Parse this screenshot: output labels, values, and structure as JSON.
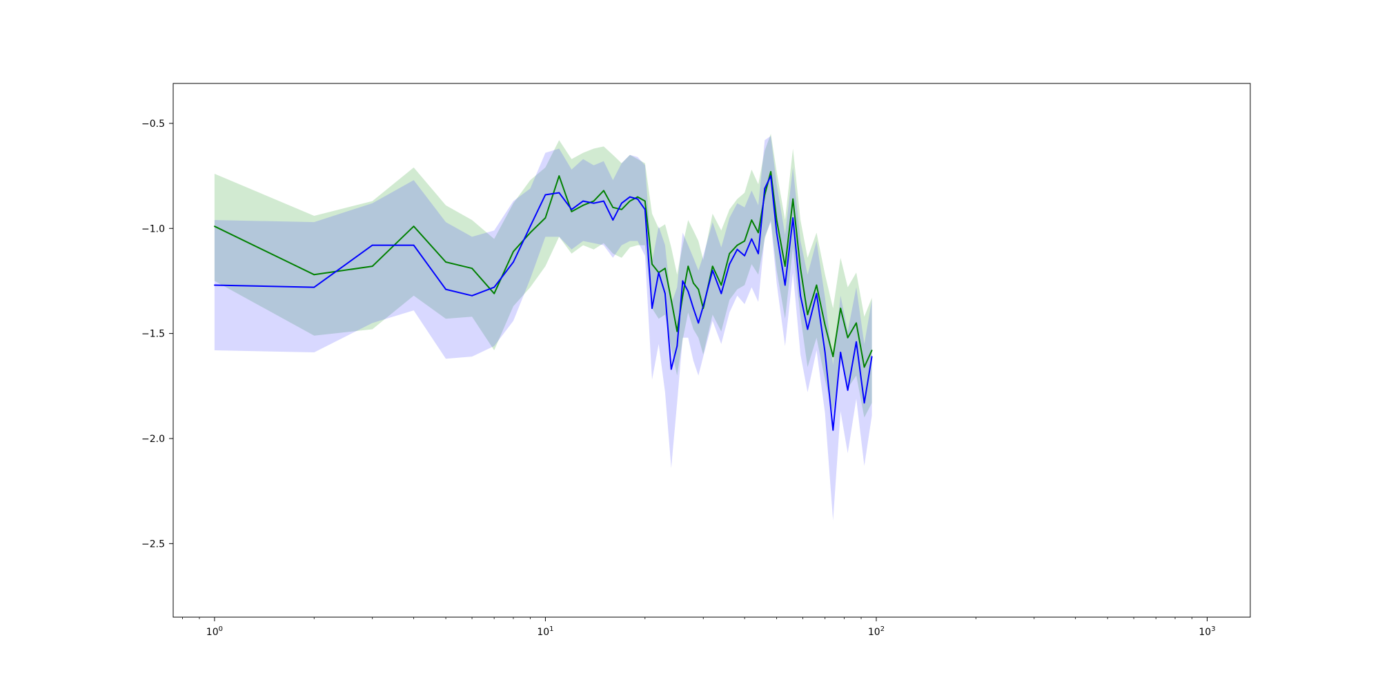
{
  "chart_data": {
    "type": "line",
    "title": "",
    "xlabel": "",
    "ylabel": "",
    "x_scale": "log",
    "xlim": [
      0.75,
      1350
    ],
    "ylim": [
      -2.85,
      -0.31
    ],
    "grid": false,
    "legend": "none",
    "x_ticks": [
      {
        "value": 1,
        "base": "10",
        "exp": "0"
      },
      {
        "value": 10,
        "base": "10",
        "exp": "1"
      },
      {
        "value": 100,
        "base": "10",
        "exp": "2"
      },
      {
        "value": 1000,
        "base": "10",
        "exp": "3"
      }
    ],
    "y_ticks": [
      {
        "value": -0.5,
        "label": "−0.5"
      },
      {
        "value": -1.0,
        "label": "−1.0"
      },
      {
        "value": -1.5,
        "label": "−1.5"
      },
      {
        "value": -2.0,
        "label": "−2.0"
      },
      {
        "value": -2.5,
        "label": "−2.5"
      }
    ],
    "colors": {
      "series_green": "#008000",
      "series_blue": "#0000ff",
      "band_green": "#2ca02c",
      "band_blue": "#3b3bff"
    },
    "series": [
      {
        "color": "#008000",
        "band_opacity": 0.22,
        "points": [
          [
            1,
            -0.99,
            -0.74,
            -1.25
          ],
          [
            2,
            -1.22,
            -0.94,
            -1.51
          ],
          [
            3,
            -1.18,
            -0.87,
            -1.48
          ],
          [
            4,
            -0.99,
            -0.71,
            -1.32
          ],
          [
            5,
            -1.16,
            -0.89,
            -1.43
          ],
          [
            6,
            -1.19,
            -0.96,
            -1.42
          ],
          [
            7,
            -1.31,
            -1.05,
            -1.58
          ],
          [
            8,
            -1.11,
            -0.88,
            -1.37
          ],
          [
            9,
            -1.02,
            -0.77,
            -1.28
          ],
          [
            10,
            -0.95,
            -0.71,
            -1.18
          ],
          [
            11,
            -0.75,
            -0.58,
            -1.04
          ],
          [
            12,
            -0.92,
            -0.67,
            -1.12
          ],
          [
            13,
            -0.89,
            -0.64,
            -1.08
          ],
          [
            14,
            -0.87,
            -0.62,
            -1.1
          ],
          [
            15,
            -0.82,
            -0.61,
            -1.07
          ],
          [
            16,
            -0.9,
            -0.65,
            -1.12
          ],
          [
            17,
            -0.91,
            -0.69,
            -1.14
          ],
          [
            18,
            -0.87,
            -0.65,
            -1.09
          ],
          [
            19,
            -0.85,
            -0.67,
            -1.08
          ],
          [
            20,
            -0.87,
            -0.69,
            -1.08
          ],
          [
            21,
            -1.17,
            -0.93,
            -1.38
          ],
          [
            22,
            -1.21,
            -1.0,
            -1.43
          ],
          [
            23,
            -1.19,
            -0.98,
            -1.41
          ],
          [
            24,
            -1.34,
            -1.09,
            -1.57
          ],
          [
            25,
            -1.49,
            -1.22,
            -1.7
          ],
          [
            26,
            -1.32,
            -1.08,
            -1.53
          ],
          [
            27,
            -1.18,
            -0.96,
            -1.4
          ],
          [
            28,
            -1.26,
            -1.01,
            -1.48
          ],
          [
            29,
            -1.29,
            -1.06,
            -1.52
          ],
          [
            30,
            -1.38,
            -1.15,
            -1.6
          ],
          [
            32,
            -1.18,
            -0.93,
            -1.41
          ],
          [
            34,
            -1.27,
            -1.01,
            -1.49
          ],
          [
            36,
            -1.12,
            -0.91,
            -1.34
          ],
          [
            38,
            -1.08,
            -0.86,
            -1.29
          ],
          [
            40,
            -1.06,
            -0.83,
            -1.27
          ],
          [
            42,
            -0.96,
            -0.72,
            -1.17
          ],
          [
            44,
            -1.02,
            -0.79,
            -1.22
          ],
          [
            46,
            -0.84,
            -0.63,
            -1.05
          ],
          [
            48,
            -0.73,
            -0.55,
            -0.96
          ],
          [
            50,
            -0.96,
            -0.73,
            -1.2
          ],
          [
            53,
            -1.18,
            -0.96,
            -1.43
          ],
          [
            56,
            -0.86,
            -0.62,
            -1.09
          ],
          [
            59,
            -1.19,
            -0.96,
            -1.42
          ],
          [
            62,
            -1.41,
            -1.14,
            -1.66
          ],
          [
            66,
            -1.27,
            -1.02,
            -1.52
          ],
          [
            70,
            -1.46,
            -1.22,
            -1.72
          ],
          [
            74,
            -1.61,
            -1.38,
            -1.88
          ],
          [
            78,
            -1.38,
            -1.14,
            -1.62
          ],
          [
            82,
            -1.52,
            -1.28,
            -1.76
          ],
          [
            87,
            -1.45,
            -1.21,
            -1.7
          ],
          [
            92,
            -1.66,
            -1.42,
            -1.9
          ],
          [
            97,
            -1.58,
            -1.33,
            -1.83
          ]
        ]
      },
      {
        "color": "#0000ff",
        "band_opacity": 0.2,
        "points": [
          [
            1,
            -1.27,
            -0.96,
            -1.58
          ],
          [
            2,
            -1.28,
            -0.97,
            -1.59
          ],
          [
            3,
            -1.08,
            -0.88,
            -1.45
          ],
          [
            4,
            -1.08,
            -0.77,
            -1.39
          ],
          [
            5,
            -1.29,
            -0.97,
            -1.62
          ],
          [
            6,
            -1.32,
            -1.04,
            -1.61
          ],
          [
            7,
            -1.28,
            -1.01,
            -1.56
          ],
          [
            8,
            -1.16,
            -0.87,
            -1.44
          ],
          [
            9,
            -0.99,
            -0.81,
            -1.24
          ],
          [
            10,
            -0.84,
            -0.64,
            -1.04
          ],
          [
            11,
            -0.83,
            -0.62,
            -1.04
          ],
          [
            12,
            -0.91,
            -0.72,
            -1.1
          ],
          [
            13,
            -0.87,
            -0.67,
            -1.06
          ],
          [
            14,
            -0.88,
            -0.7,
            -1.07
          ],
          [
            15,
            -0.87,
            -0.68,
            -1.08
          ],
          [
            16,
            -0.96,
            -0.77,
            -1.14
          ],
          [
            17,
            -0.88,
            -0.69,
            -1.08
          ],
          [
            18,
            -0.85,
            -0.65,
            -1.06
          ],
          [
            19,
            -0.86,
            -0.66,
            -1.06
          ],
          [
            20,
            -0.91,
            -0.7,
            -1.13
          ],
          [
            21,
            -1.38,
            -1.16,
            -1.72
          ],
          [
            22,
            -1.21,
            -0.99,
            -1.55
          ],
          [
            23,
            -1.31,
            -1.08,
            -1.78
          ],
          [
            24,
            -1.67,
            -1.36,
            -2.14
          ],
          [
            25,
            -1.56,
            -1.28,
            -1.83
          ],
          [
            26,
            -1.25,
            -1.02,
            -1.52
          ],
          [
            27,
            -1.3,
            -1.08,
            -1.52
          ],
          [
            28,
            -1.38,
            -1.14,
            -1.63
          ],
          [
            29,
            -1.45,
            -1.2,
            -1.7
          ],
          [
            30,
            -1.37,
            -1.13,
            -1.61
          ],
          [
            32,
            -1.2,
            -0.97,
            -1.44
          ],
          [
            34,
            -1.31,
            -1.09,
            -1.55
          ],
          [
            36,
            -1.17,
            -0.95,
            -1.4
          ],
          [
            38,
            -1.1,
            -0.88,
            -1.32
          ],
          [
            40,
            -1.13,
            -0.9,
            -1.36
          ],
          [
            42,
            -1.05,
            -0.82,
            -1.28
          ],
          [
            44,
            -1.12,
            -0.89,
            -1.35
          ],
          [
            46,
            -0.81,
            -0.58,
            -1.04
          ],
          [
            48,
            -0.75,
            -0.56,
            -0.97
          ],
          [
            50,
            -1.02,
            -0.79,
            -1.26
          ],
          [
            53,
            -1.27,
            -1.03,
            -1.56
          ],
          [
            56,
            -0.95,
            -0.71,
            -1.21
          ],
          [
            59,
            -1.32,
            -1.06,
            -1.6
          ],
          [
            62,
            -1.48,
            -1.22,
            -1.78
          ],
          [
            66,
            -1.31,
            -1.06,
            -1.58
          ],
          [
            70,
            -1.59,
            -1.33,
            -1.88
          ],
          [
            74,
            -1.96,
            -1.65,
            -2.39
          ],
          [
            78,
            -1.59,
            -1.32,
            -1.87
          ],
          [
            82,
            -1.77,
            -1.49,
            -2.07
          ],
          [
            87,
            -1.54,
            -1.28,
            -1.81
          ],
          [
            92,
            -1.83,
            -1.55,
            -2.13
          ],
          [
            97,
            -1.61,
            -1.34,
            -1.89
          ]
        ]
      }
    ]
  }
}
